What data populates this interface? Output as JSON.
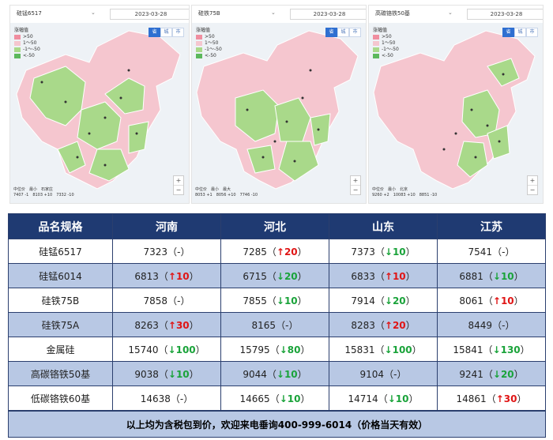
{
  "maps": [
    {
      "selector": "硅锰6517",
      "date": "2023-03-28",
      "legend_title": "涨幅值",
      "legend": [
        ">50",
        "1～50",
        "-1～-50",
        "<-50"
      ],
      "view_buttons": [
        "省",
        "城",
        "市"
      ],
      "avg_labels": [
        "7407 -1",
        "8103 +10",
        "7332 -10"
      ],
      "avg_names": [
        "中位价",
        "最小",
        "石家庄"
      ]
    },
    {
      "selector": "硅铁75B",
      "date": "2023-03-28",
      "legend_title": "涨幅值",
      "legend": [
        ">50",
        "1～50",
        "-1～-50",
        "<-50"
      ],
      "view_buttons": [
        "省",
        "城",
        "市"
      ],
      "avg_labels": [
        "8053 +1",
        "8056 +10",
        "7746 -10"
      ],
      "avg_names": [
        "中位价",
        "最小",
        "最大"
      ]
    },
    {
      "selector": "高碳铬铁50基",
      "date": "2023-03-28",
      "legend_title": "涨幅值",
      "legend": [
        ">50",
        "1～50",
        "-1～-50",
        "<-50"
      ],
      "view_buttons": [
        "省",
        "城",
        "市"
      ],
      "avg_labels": [
        "9260 +2",
        "10083 +10",
        "8851 -10"
      ],
      "avg_names": [
        "中位价",
        "最小",
        "北京"
      ]
    }
  ],
  "colors": {
    "header_bg": "#1f3a72",
    "row_alt": "#b8c8e4",
    "up": "#e01515",
    "down": "#1aa33a",
    "map_pink": "#f5c6cf",
    "map_green": "#a9d98a"
  },
  "table": {
    "headers": [
      "品名规格",
      "河南",
      "河北",
      "山东",
      "江苏"
    ],
    "rows": [
      {
        "name": "硅锰6517",
        "cells": [
          {
            "price": "7323",
            "dir": "flat",
            "chg": "-"
          },
          {
            "price": "7285",
            "dir": "up",
            "chg": "20"
          },
          {
            "price": "7373",
            "dir": "down",
            "chg": "10"
          },
          {
            "price": "7541",
            "dir": "flat",
            "chg": "-"
          }
        ]
      },
      {
        "name": "硅锰6014",
        "cells": [
          {
            "price": "6813",
            "dir": "up",
            "chg": "10"
          },
          {
            "price": "6715",
            "dir": "down",
            "chg": "20"
          },
          {
            "price": "6833",
            "dir": "up",
            "chg": "10"
          },
          {
            "price": "6881",
            "dir": "down",
            "chg": "10"
          }
        ]
      },
      {
        "name": "硅铁75B",
        "cells": [
          {
            "price": "7858",
            "dir": "flat",
            "chg": "-"
          },
          {
            "price": "7855",
            "dir": "down",
            "chg": "10"
          },
          {
            "price": "7914",
            "dir": "down",
            "chg": "20"
          },
          {
            "price": "8061",
            "dir": "up",
            "chg": "10"
          }
        ]
      },
      {
        "name": "硅铁75A",
        "cells": [
          {
            "price": "8263",
            "dir": "up",
            "chg": "30"
          },
          {
            "price": "8165",
            "dir": "flat",
            "chg": "-"
          },
          {
            "price": "8283",
            "dir": "up",
            "chg": "20"
          },
          {
            "price": "8449",
            "dir": "flat",
            "chg": "-"
          }
        ]
      },
      {
        "name": "金属硅",
        "cells": [
          {
            "price": "15740",
            "dir": "down",
            "chg": "100"
          },
          {
            "price": "15795",
            "dir": "down",
            "chg": "80"
          },
          {
            "price": "15831",
            "dir": "down",
            "chg": "100"
          },
          {
            "price": "15841",
            "dir": "down",
            "chg": "130"
          }
        ]
      },
      {
        "name": "高碳铬铁50基",
        "cells": [
          {
            "price": "9038",
            "dir": "down",
            "chg": "10"
          },
          {
            "price": "9044",
            "dir": "down",
            "chg": "10"
          },
          {
            "price": "9104",
            "dir": "flat",
            "chg": "-"
          },
          {
            "price": "9241",
            "dir": "down",
            "chg": "20"
          }
        ]
      },
      {
        "name": "低碳铬铁60基",
        "cells": [
          {
            "price": "14638",
            "dir": "flat",
            "chg": "-"
          },
          {
            "price": "14665",
            "dir": "down",
            "chg": "10"
          },
          {
            "price": "14714",
            "dir": "down",
            "chg": "10"
          },
          {
            "price": "14861",
            "dir": "up",
            "chg": "30"
          }
        ]
      }
    ],
    "footer": "以上均为含税包到价，欢迎来电垂询400-999-6014（价格当天有效）"
  }
}
